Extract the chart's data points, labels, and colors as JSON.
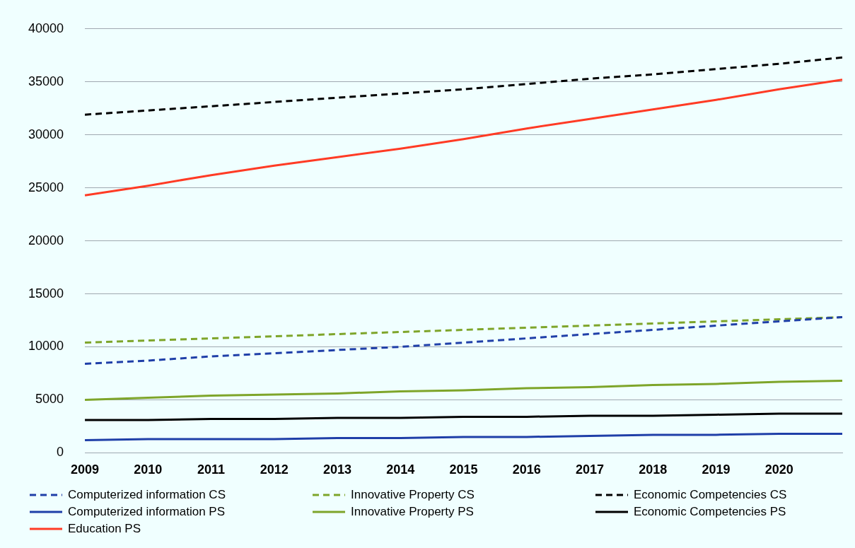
{
  "chart_data": {
    "type": "line",
    "categories": [
      "2009",
      "2010",
      "2011",
      "2012",
      "2013",
      "2014",
      "2015",
      "2016",
      "2017",
      "2018",
      "2019",
      "2020",
      null
    ],
    "ylim": [
      0,
      40000
    ],
    "yticks": [
      0,
      5000,
      10000,
      15000,
      20000,
      25000,
      30000,
      35000,
      40000
    ],
    "grid": "y",
    "legend": "bottom",
    "marker": "none",
    "series": [
      {
        "name": "Computerized information CS",
        "color": "#1f3fa8",
        "line_style": "dashed",
        "values": [
          8400,
          8700,
          9100,
          9400,
          9700,
          10000,
          10400,
          10800,
          11200,
          11600,
          12000,
          12400,
          12800
        ]
      },
      {
        "name": "Innovative Property CS",
        "color": "#7ea52a",
        "line_style": "dashed",
        "values": [
          10400,
          10600,
          10800,
          11000,
          11200,
          11400,
          11600,
          11800,
          12000,
          12200,
          12400,
          12600,
          12800
        ]
      },
      {
        "name": "Economic Competencies CS",
        "color": "#000000",
        "line_style": "dashed",
        "values": [
          31900,
          32300,
          32700,
          33100,
          33500,
          33900,
          34300,
          34800,
          35300,
          35700,
          36200,
          36700,
          37300
        ]
      },
      {
        "name": "Computerized information PS",
        "color": "#1f3fa8",
        "line_style": "solid",
        "values": [
          1200,
          1300,
          1300,
          1300,
          1400,
          1400,
          1500,
          1500,
          1600,
          1700,
          1700,
          1800,
          1800
        ]
      },
      {
        "name": "Innovative Property PS",
        "color": "#7ea52a",
        "line_style": "solid",
        "values": [
          5000,
          5200,
          5400,
          5500,
          5600,
          5800,
          5900,
          6100,
          6200,
          6400,
          6500,
          6700,
          6800
        ]
      },
      {
        "name": "Economic Competencies PS",
        "color": "#000000",
        "line_style": "solid",
        "values": [
          3100,
          3100,
          3200,
          3200,
          3300,
          3300,
          3400,
          3400,
          3500,
          3500,
          3600,
          3700,
          3700
        ]
      },
      {
        "name": "Education PS",
        "color": "#ff3b25",
        "line_style": "solid",
        "values": [
          24300,
          25200,
          26200,
          27100,
          27900,
          28700,
          29600,
          30600,
          31500,
          32400,
          33300,
          34300,
          35200
        ]
      }
    ]
  }
}
